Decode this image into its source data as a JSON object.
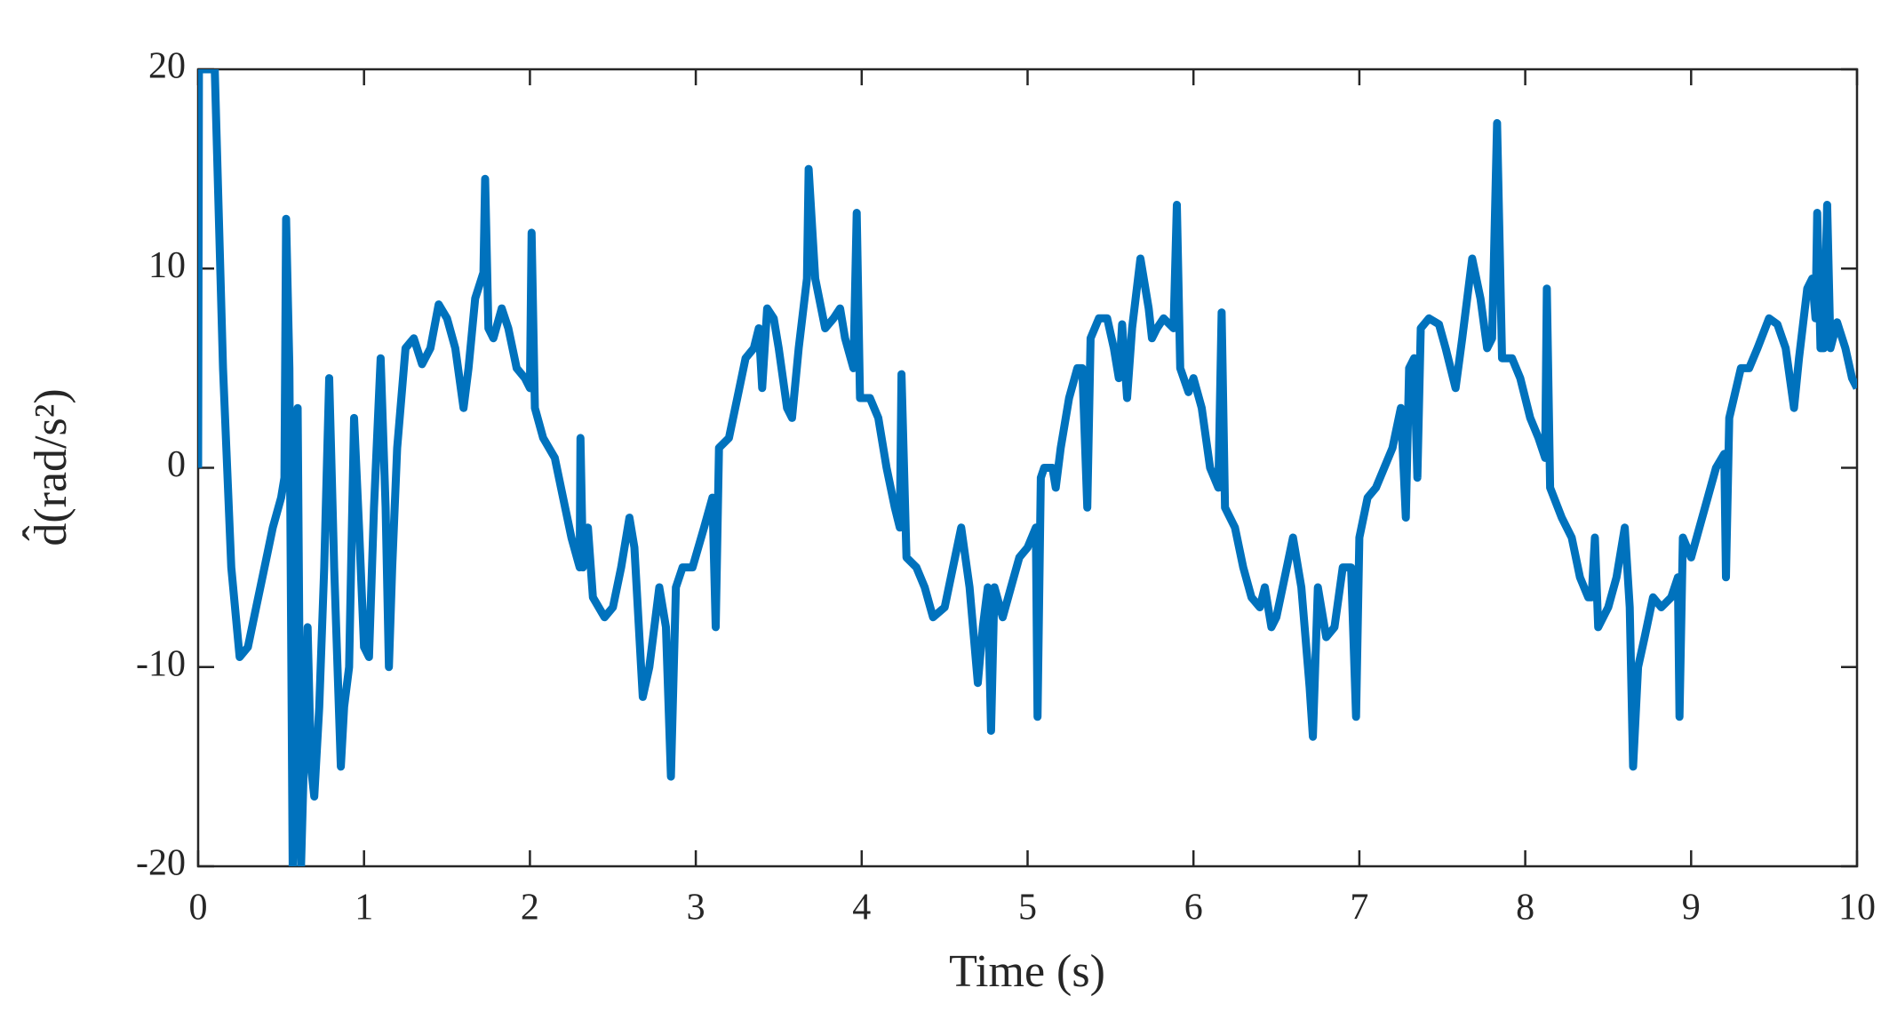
{
  "chart_data": {
    "type": "line",
    "xlabel": "Time (s)",
    "ylabel": "d̂(rad/s²)",
    "xlim": [
      0,
      10
    ],
    "ylim": [
      -20,
      20
    ],
    "xticks": [
      0,
      1,
      2,
      3,
      4,
      5,
      6,
      7,
      8,
      9,
      10
    ],
    "yticks": [
      -20,
      -10,
      0,
      10,
      20
    ],
    "grid": false,
    "series": [
      {
        "color": "#0072bd",
        "x": [
          0,
          0.005,
          0.1,
          0.15,
          0.2,
          0.25,
          0.3,
          0.35,
          0.4,
          0.45,
          0.5,
          0.52,
          0.53,
          0.55,
          0.57,
          0.59,
          0.6,
          0.62,
          0.66,
          0.68,
          0.7,
          0.73,
          0.76,
          0.79,
          0.82,
          0.86,
          0.88,
          0.91,
          0.94,
          0.97,
          1.0,
          1.03,
          1.06,
          1.1,
          1.13,
          1.15,
          1.17,
          1.2,
          1.25,
          1.3,
          1.35,
          1.4,
          1.45,
          1.5,
          1.55,
          1.6,
          1.63,
          1.67,
          1.72,
          1.73,
          1.75,
          1.78,
          1.83,
          1.87,
          1.92,
          1.97,
          2.0,
          2.01,
          2.03,
          2.08,
          2.15,
          2.2,
          2.25,
          2.3,
          2.305,
          2.32,
          2.35,
          2.38,
          2.45,
          2.5,
          2.55,
          2.6,
          2.63,
          2.68,
          2.72,
          2.78,
          2.82,
          2.85,
          2.88,
          2.92,
          2.98,
          3.05,
          3.1,
          3.12,
          3.14,
          3.2,
          3.25,
          3.3,
          3.35,
          3.38,
          3.4,
          3.43,
          3.47,
          3.5,
          3.55,
          3.58,
          3.62,
          3.67,
          3.68,
          3.72,
          3.78,
          3.83,
          3.87,
          3.9,
          3.95,
          3.97,
          3.99,
          4.05,
          4.1,
          4.15,
          4.2,
          4.23,
          4.24,
          4.27,
          4.33,
          4.38,
          4.43,
          4.5,
          4.55,
          4.6,
          4.65,
          4.7,
          4.73,
          4.76,
          4.78,
          4.8,
          4.85,
          4.9,
          4.95,
          5.0,
          5.05,
          5.06,
          5.08,
          5.1,
          5.15,
          5.17,
          5.2,
          5.25,
          5.3,
          5.33,
          5.36,
          5.38,
          5.43,
          5.48,
          5.52,
          5.55,
          5.57,
          5.6,
          5.63,
          5.68,
          5.73,
          5.75,
          5.78,
          5.82,
          5.88,
          5.9,
          5.92,
          5.97,
          6.0,
          6.05,
          6.1,
          6.15,
          6.17,
          6.19,
          6.25,
          6.3,
          6.35,
          6.4,
          6.43,
          6.47,
          6.5,
          6.55,
          6.6,
          6.65,
          6.7,
          6.72,
          6.75,
          6.8,
          6.85,
          6.9,
          6.95,
          6.98,
          7.0,
          7.05,
          7.1,
          7.15,
          7.2,
          7.25,
          7.28,
          7.3,
          7.33,
          7.35,
          7.37,
          7.42,
          7.48,
          7.52,
          7.58,
          7.62,
          7.68,
          7.73,
          7.77,
          7.8,
          7.83,
          7.86,
          7.92,
          7.97,
          8.03,
          8.08,
          8.12,
          8.13,
          8.15,
          8.22,
          8.28,
          8.33,
          8.38,
          8.4,
          8.42,
          8.44,
          8.5,
          8.55,
          8.6,
          8.63,
          8.65,
          8.68,
          8.72,
          8.77,
          8.82,
          8.88,
          8.92,
          8.93,
          8.95,
          9.0,
          9.05,
          9.1,
          9.15,
          9.2,
          9.21,
          9.23,
          9.3,
          9.35,
          9.4,
          9.47,
          9.52,
          9.57,
          9.62,
          9.65,
          9.7,
          9.73,
          9.75,
          9.76,
          9.78,
          9.8,
          9.82,
          9.84,
          9.88,
          9.93,
          9.97,
          10
        ],
        "values": [
          0,
          20,
          20,
          5,
          -5,
          -9.5,
          -9,
          -7,
          -5,
          -3,
          -1.5,
          -0.5,
          12.5,
          5,
          -20,
          -15,
          3,
          -20,
          -8,
          -15,
          -16.5,
          -12,
          -5,
          4.5,
          -5,
          -15,
          -12,
          -10,
          2.5,
          -3,
          -9,
          -9.5,
          -2,
          5.5,
          -2,
          -10,
          -5,
          1,
          6,
          6.5,
          5.2,
          6,
          8.2,
          7.5,
          6,
          3,
          5,
          8.5,
          9.8,
          14.5,
          7,
          6.5,
          8,
          7,
          5,
          4.5,
          4,
          11.8,
          3,
          1.5,
          0.5,
          -1.5,
          -3.5,
          -5,
          1.5,
          -5,
          -3,
          -6.5,
          -7.5,
          -7,
          -5,
          -2.5,
          -4,
          -11.5,
          -10,
          -6,
          -8,
          -15.5,
          -6,
          -5,
          -5,
          -3,
          -1.5,
          -8,
          1,
          1.5,
          3.5,
          5.5,
          6,
          7,
          4,
          8,
          7.5,
          6,
          3,
          2.5,
          6,
          9.5,
          15,
          9.5,
          7,
          7.5,
          8,
          6.5,
          5,
          12.8,
          3.5,
          3.5,
          2.5,
          0,
          -2,
          -3,
          4.7,
          -4.5,
          -5,
          -6,
          -7.5,
          -7,
          -5,
          -3,
          -6,
          -10.8,
          -8,
          -6,
          -13.2,
          -6,
          -7.5,
          -6,
          -4.5,
          -4,
          -3,
          -12.5,
          -0.5,
          0,
          0,
          -1,
          1,
          3.5,
          5,
          5,
          -2,
          6.5,
          7.5,
          7.5,
          6,
          4.5,
          7.2,
          3.5,
          7,
          10.5,
          8,
          6.5,
          7,
          7.5,
          7,
          13.2,
          5,
          3.8,
          4.5,
          3,
          0,
          -1,
          7.8,
          -2,
          -3,
          -5,
          -6.5,
          -7,
          -6,
          -8,
          -7.5,
          -5.5,
          -3.5,
          -6,
          -11,
          -13.5,
          -6,
          -8.5,
          -8,
          -5,
          -5,
          -12.5,
          -3.5,
          -1.5,
          -1,
          0,
          1,
          3,
          -2.5,
          5,
          5.5,
          -0.5,
          7,
          7.5,
          7.2,
          6,
          4,
          6.5,
          10.5,
          8.5,
          6,
          6.5,
          17.3,
          5.5,
          5.5,
          4.5,
          2.5,
          1.5,
          0.5,
          9,
          -1,
          -2.5,
          -3.5,
          -5.5,
          -6.5,
          -6.5,
          -3.5,
          -8,
          -7,
          -5.5,
          -3,
          -7,
          -15,
          -10,
          -8.5,
          -6.5,
          -7,
          -6.5,
          -5.5,
          -12.5,
          -3.5,
          -4.5,
          -3,
          -1.5,
          0,
          0.7,
          -5.5,
          2.5,
          5,
          5,
          6,
          7.5,
          7.2,
          6,
          3,
          5.5,
          9,
          9.5,
          7.5,
          12.8,
          6,
          6,
          13.2,
          6,
          7.3,
          6,
          4.5,
          4
        ]
      }
    ]
  }
}
